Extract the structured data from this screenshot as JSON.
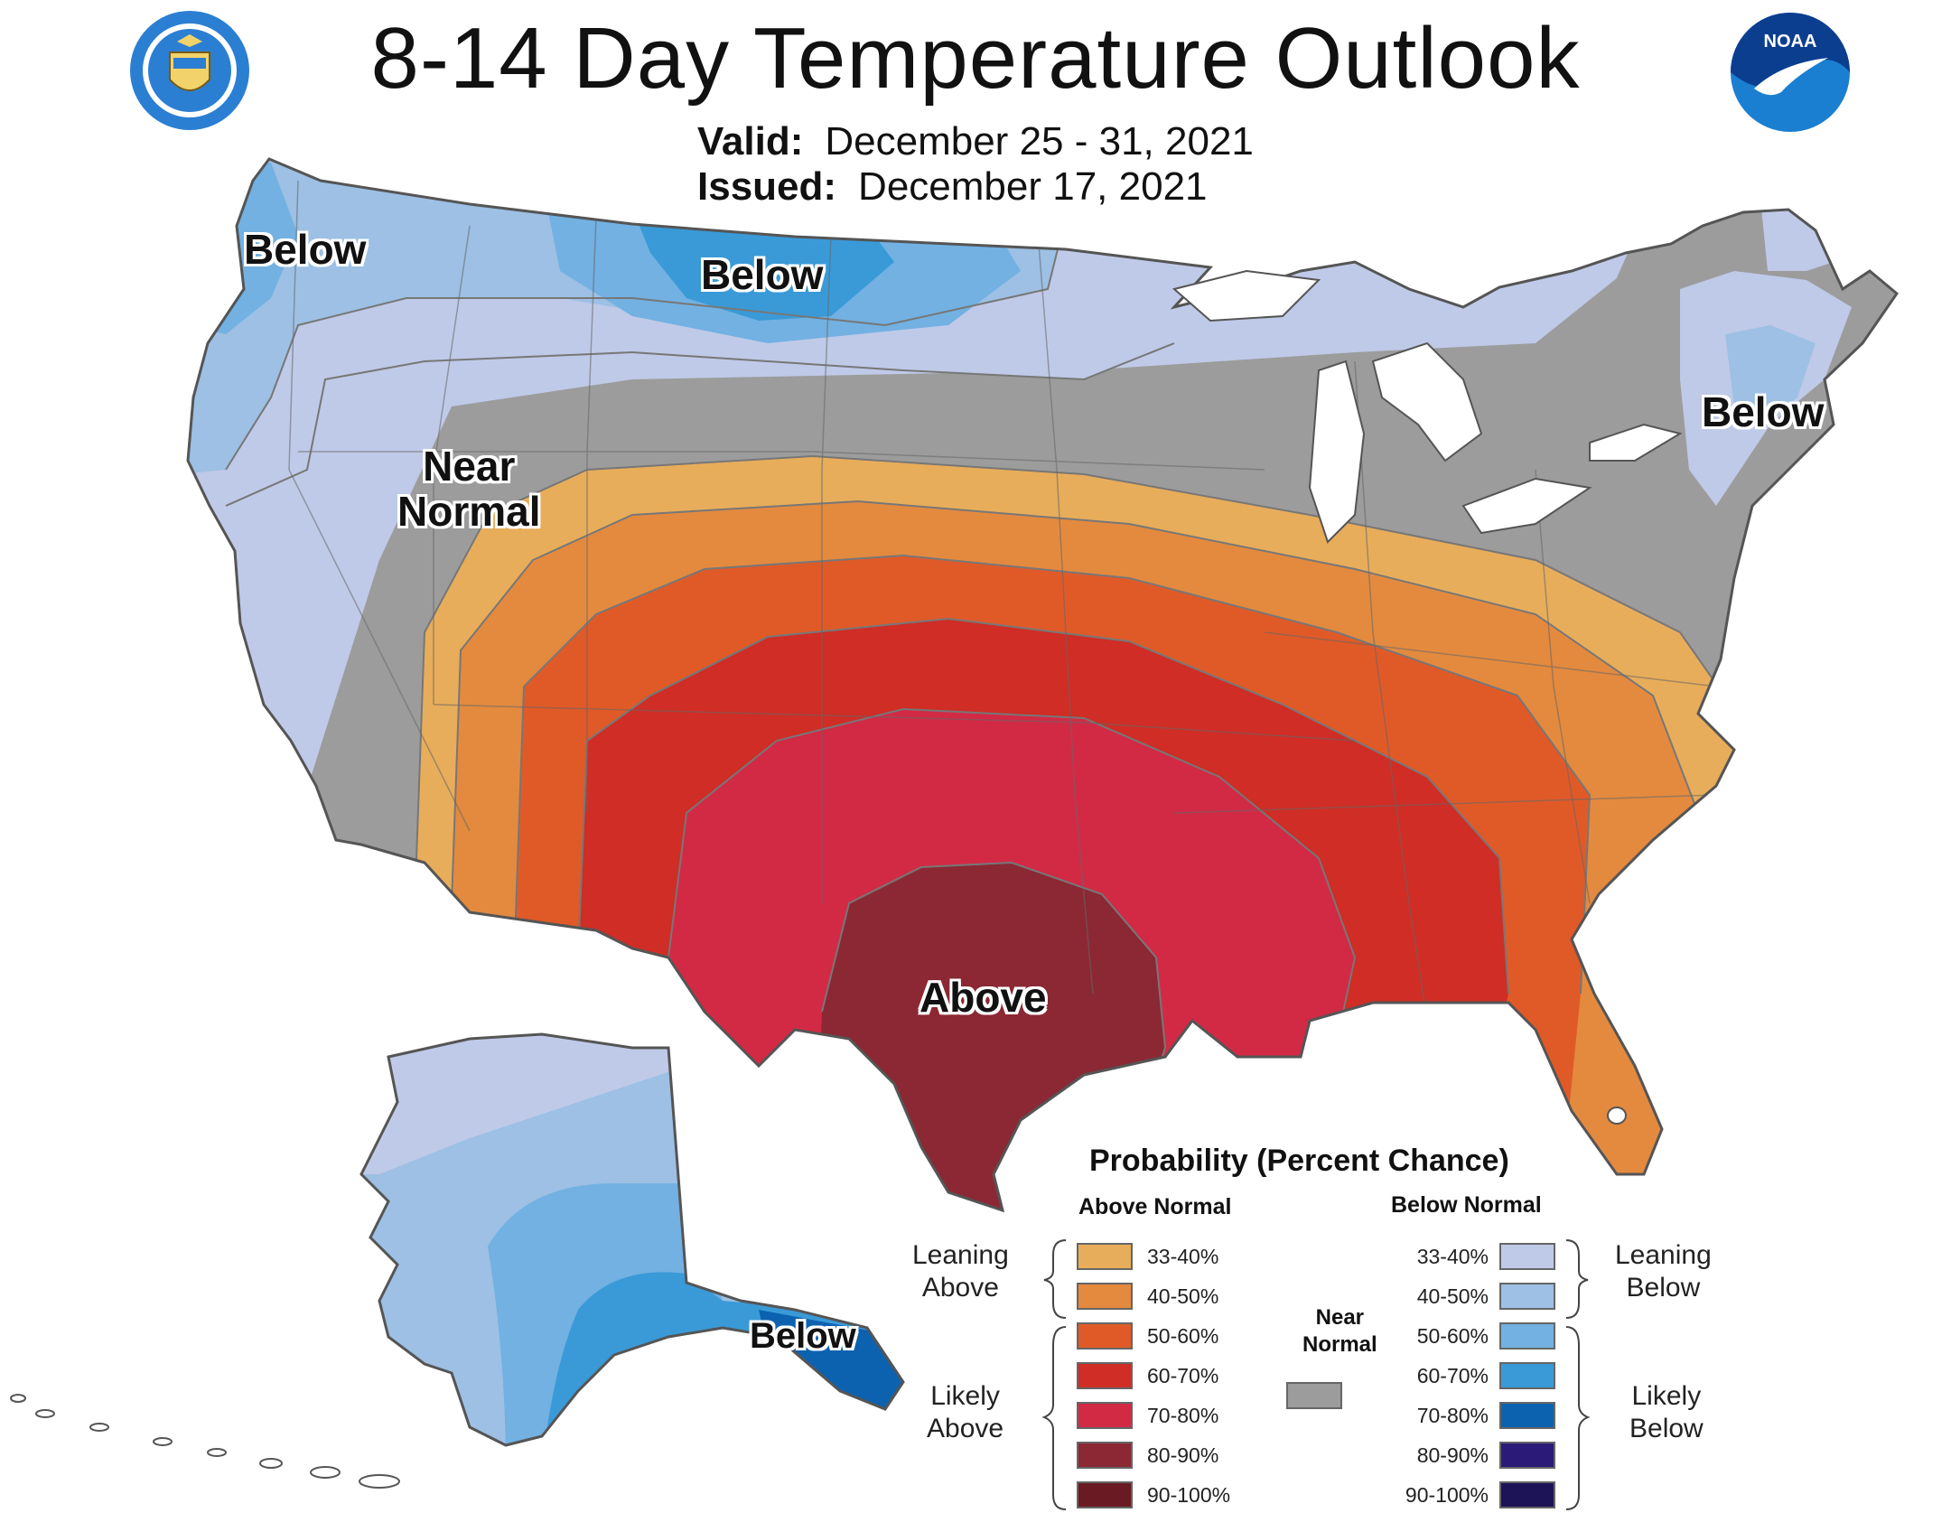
{
  "title": "8-14 Day Temperature Outlook",
  "valid": {
    "label": "Valid:",
    "value": "December 25 - 31, 2021"
  },
  "issued": {
    "label": "Issued:",
    "value": "December 17, 2021"
  },
  "logos": {
    "left": "department-of-commerce-seal",
    "right": "noaa-logo"
  },
  "region_labels": {
    "pacific_nw": "Below",
    "northern_plains": "Below",
    "new_england": "Below",
    "near_normal_line1": "Near",
    "near_normal_line2": "Normal",
    "texas": "Above",
    "alaska": "Below"
  },
  "legend": {
    "title": "Probability (Percent Chance)",
    "above_header": "Above Normal",
    "below_header": "Below Normal",
    "near_normal_line1": "Near",
    "near_normal_line2": "Normal",
    "near_normal_color": "#9c9c9c",
    "leaning_above": [
      "Leaning",
      "Above"
    ],
    "likely_above": [
      "Likely",
      "Above"
    ],
    "leaning_below": [
      "Leaning",
      "Below"
    ],
    "likely_below": [
      "Likely",
      "Below"
    ],
    "above": [
      {
        "label": "33-40%",
        "color": "#e8ad5a"
      },
      {
        "label": "40-50%",
        "color": "#e38a3f"
      },
      {
        "label": "50-60%",
        "color": "#e05a28"
      },
      {
        "label": "60-70%",
        "color": "#cf2d25"
      },
      {
        "label": "70-80%",
        "color": "#d22a45"
      },
      {
        "label": "80-90%",
        "color": "#8b2834"
      },
      {
        "label": "90-100%",
        "color": "#6a1a22"
      }
    ],
    "below": [
      {
        "label": "33-40%",
        "color": "#bfcae8"
      },
      {
        "label": "40-50%",
        "color": "#9dc0e4"
      },
      {
        "label": "50-60%",
        "color": "#72b1e2"
      },
      {
        "label": "60-70%",
        "color": "#3a9ad8"
      },
      {
        "label": "70-80%",
        "color": "#0d62b0"
      },
      {
        "label": "80-90%",
        "color": "#2b1a77"
      },
      {
        "label": "90-100%",
        "color": "#1d1457"
      }
    ]
  }
}
